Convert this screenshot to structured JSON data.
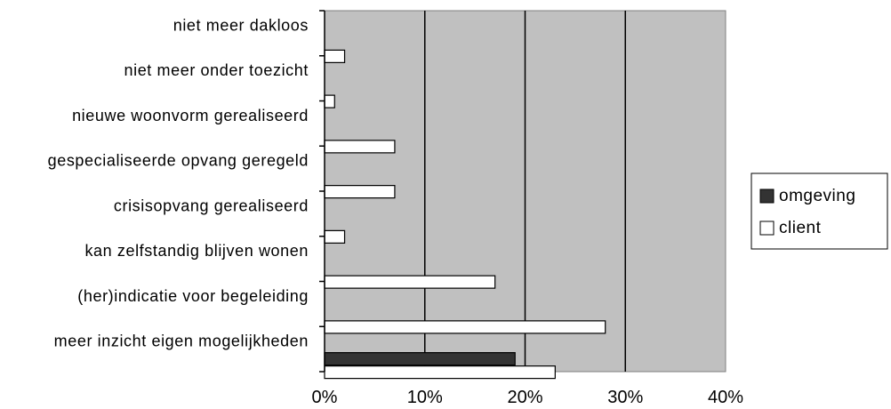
{
  "chart_data": {
    "type": "bar",
    "orientation": "horizontal",
    "categories": [
      "niet meer dakloos",
      "niet meer onder toezicht",
      "nieuwe woonvorm gerealiseerd",
      "gespecialiseerde opvang geregeld",
      "crisisopvang gerealiseerd",
      "kan zelfstandig blijven wonen",
      "(her)indicatie voor begeleiding",
      "meer inzicht eigen mogelijkheden"
    ],
    "series": [
      {
        "name": "omgeving",
        "color": "#333333",
        "values": [
          0,
          0,
          0,
          0,
          0,
          0,
          0,
          19
        ]
      },
      {
        "name": "client",
        "color": "#ffffff",
        "values": [
          2,
          1,
          7,
          7,
          2,
          17,
          28,
          23
        ]
      }
    ],
    "xlim": [
      0,
      40
    ],
    "xticks": [
      "0%",
      "10%",
      "20%",
      "30%",
      "40%"
    ],
    "title": "",
    "xlabel": "",
    "ylabel": "",
    "grid": true,
    "plot_background": "#c0c0c0",
    "legend_position": "right"
  }
}
